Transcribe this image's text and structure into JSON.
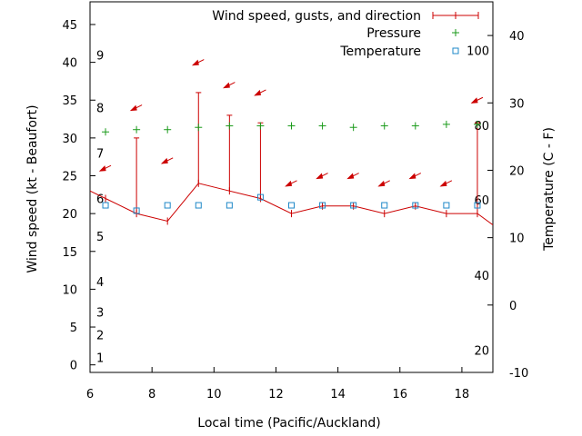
{
  "chart_data": {
    "type": "line",
    "xlabel": "Local time (Pacific/Auckland)",
    "ylabel": "Wind speed (kt - Beaufort)",
    "y2label": "Temperature (C - F)",
    "xlim": [
      6,
      19
    ],
    "ylim": [
      -1,
      48
    ],
    "y2lim": [
      -10,
      45
    ],
    "grid": false,
    "legend_position": "top-right",
    "x_ticks": [
      6,
      8,
      10,
      12,
      14,
      16,
      18
    ],
    "y_ticks": [
      0,
      5,
      10,
      15,
      20,
      25,
      30,
      35,
      40,
      45
    ],
    "y2_ticks": [
      -10,
      0,
      10,
      20,
      30,
      40
    ],
    "beaufort_labels": [
      {
        "label": "1",
        "y": 1
      },
      {
        "label": "2",
        "y": 4
      },
      {
        "label": "3",
        "y": 7
      },
      {
        "label": "4",
        "y": 11
      },
      {
        "label": "5",
        "y": 17
      },
      {
        "label": "6",
        "y": 22
      },
      {
        "label": "7",
        "y": 28
      },
      {
        "label": "8",
        "y": 34
      },
      {
        "label": "9",
        "y": 41
      }
    ],
    "fahrenheit_labels": [
      {
        "label": "20",
        "c": -6.7
      },
      {
        "label": "40",
        "c": 4.4
      },
      {
        "label": "60",
        "c": 15.6
      },
      {
        "label": "80",
        "c": 26.7
      },
      {
        "label": "100",
        "c": 37.8
      }
    ],
    "series": [
      {
        "name": "Wind speed, gusts, and direction",
        "color": "#cc0000",
        "x": [
          6.0,
          6.5,
          7.5,
          8.5,
          9.5,
          10.5,
          11.5,
          12.5,
          13.5,
          14.5,
          15.5,
          16.5,
          17.5,
          18.5,
          19.0
        ],
        "values": [
          23,
          22,
          20,
          19,
          24,
          23,
          22,
          20,
          21,
          21,
          20,
          21,
          20,
          20,
          18.5
        ],
        "gusts": [
          null,
          null,
          30,
          null,
          36,
          33,
          32,
          null,
          null,
          null,
          null,
          null,
          null,
          32,
          null
        ]
      },
      {
        "name": "Pressure",
        "color": "#1a9a1a",
        "x": [
          6.5,
          7.5,
          8.5,
          9.5,
          10.5,
          11.5,
          12.5,
          13.5,
          14.5,
          15.5,
          16.5,
          17.5,
          18.5
        ],
        "values": [
          30.8,
          31.1,
          31.1,
          31.4,
          31.6,
          31.6,
          31.6,
          31.6,
          31.4,
          31.6,
          31.6,
          31.8,
          31.8
        ]
      },
      {
        "name": "Temperature",
        "color": "#1e88c8",
        "x": [
          6.5,
          7.5,
          8.5,
          9.5,
          10.5,
          11.5,
          12.5,
          13.5,
          14.5,
          15.5,
          16.5,
          17.5,
          18.5
        ],
        "values": [
          14.8,
          14.0,
          14.8,
          14.8,
          14.8,
          16.0,
          14.8,
          14.8,
          14.8,
          14.8,
          14.8,
          14.8,
          14.8
        ]
      }
    ],
    "wind_arrows": [
      {
        "x": 6.5,
        "y": 26
      },
      {
        "x": 7.5,
        "y": 34
      },
      {
        "x": 8.5,
        "y": 27
      },
      {
        "x": 9.5,
        "y": 40
      },
      {
        "x": 10.5,
        "y": 37
      },
      {
        "x": 11.5,
        "y": 36
      },
      {
        "x": 12.5,
        "y": 24
      },
      {
        "x": 13.5,
        "y": 25
      },
      {
        "x": 14.5,
        "y": 25
      },
      {
        "x": 15.5,
        "y": 24
      },
      {
        "x": 16.5,
        "y": 25
      },
      {
        "x": 17.5,
        "y": 24
      },
      {
        "x": 18.5,
        "y": 35
      }
    ],
    "wind_arrow_color": "#cc0000"
  }
}
